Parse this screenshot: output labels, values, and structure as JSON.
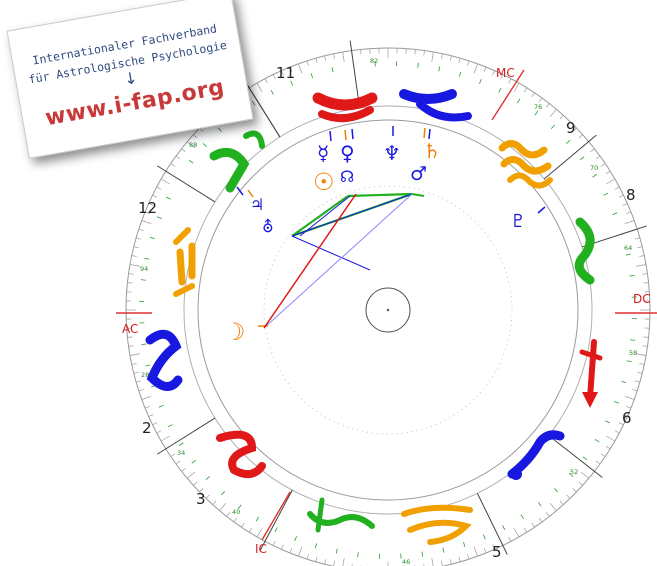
{
  "sticker": {
    "line1": "Internationaler Fachverband",
    "line2": "für Astrologische Psychologie",
    "arrow": "↓",
    "url": "www.i-fap.org"
  },
  "angles": {
    "mc": "MC",
    "ic": "IC",
    "ac": "AC",
    "dc": "DC"
  },
  "houses": [
    "12",
    "11",
    "9",
    "8",
    "6",
    "5",
    "3",
    "2"
  ],
  "degree_labels": [
    "82",
    "76",
    "70",
    "64",
    "58",
    "52",
    "46",
    "40",
    "34",
    "28",
    "94",
    "88"
  ],
  "colors": {
    "fire": "#e01818",
    "earth": "#20b020",
    "air": "#f0a000",
    "water": "#1818e0",
    "axis": "#e03030"
  },
  "zodiac_signs": [
    {
      "name": "taurus-icon",
      "color": "#e01818"
    },
    {
      "name": "pisces-icon",
      "color": "#1818e0"
    },
    {
      "name": "aquarius-icon",
      "color": "#f0a000"
    },
    {
      "name": "capricorn-icon",
      "color": "#20b020"
    },
    {
      "name": "sagittarius-icon",
      "color": "#e01818"
    },
    {
      "name": "scorpio-icon",
      "color": "#1818e0"
    },
    {
      "name": "libra-icon",
      "color": "#f0a000"
    },
    {
      "name": "virgo-icon",
      "color": "#20b020"
    },
    {
      "name": "leo-icon",
      "color": "#e01818"
    },
    {
      "name": "cancer-icon",
      "color": "#1818e0"
    },
    {
      "name": "gemini-icon",
      "color": "#f0a000"
    },
    {
      "name": "aries-icon",
      "color": "#20b020"
    }
  ],
  "planets": {
    "mercury": "☿",
    "venus": "♀",
    "sun": "☉",
    "node": "☊",
    "neptune": "♆",
    "saturn": "♄",
    "mars": "♂",
    "jupiter": "♃",
    "uranus": "⛢",
    "moon": "☽",
    "pluto": "♇"
  }
}
